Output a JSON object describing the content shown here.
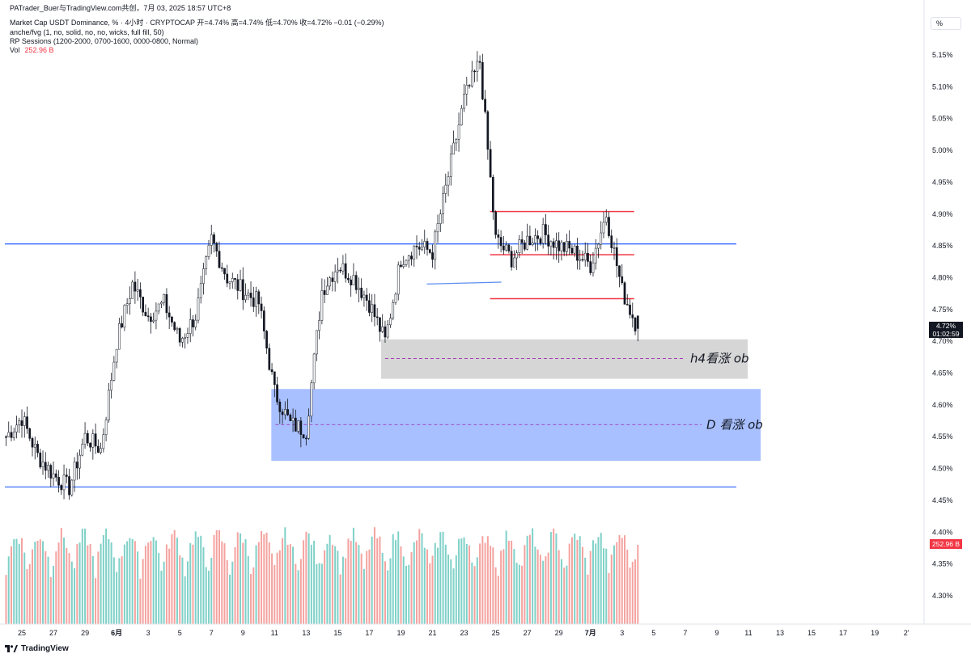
{
  "header": {
    "attribution": "PATrader_Buer与TradingView.com共创，7月 03, 2025 18:57 UTC+8",
    "symbol_line": "Market Cap USDT Dominance, % · 4小时 · CRYPTOCAP  开=4.74%  高=4.74%  低=4.70%  收=4.72%  −0.01 (−0.29%)",
    "indicator1": "anche/fvg (1, no, solid, no, no, wicks, full fill, 50)",
    "indicator2": "RP Sessions (1200-2000, 0700-1600, 0000-0800, Normal)",
    "vol_label": "Vol",
    "vol_value": "252.96 B"
  },
  "axis": {
    "unit_button": "%",
    "price_tag_value": "4.72%",
    "price_tag_countdown": "01:02:59",
    "volume_tag": "252.96 B",
    "footer_brand": "TradingView"
  },
  "colors": {
    "up": "#26a69a",
    "down": "#ef5350",
    "candle": "#131722",
    "blue_line": "#2962ff",
    "red_line": "#f23645",
    "ob_d": "#a8c0ff",
    "ob_h4": "#d6d6d6"
  },
  "chart_data": {
    "type": "candlestick",
    "symbol": "Market Cap USDT Dominance, %",
    "timeframe": "4小时",
    "ylim": [
      4.27,
      5.2
    ],
    "y_ticks": [
      "5.15%",
      "5.10%",
      "5.05%",
      "5.00%",
      "4.95%",
      "4.90%",
      "4.85%",
      "4.80%",
      "4.75%",
      "4.70%",
      "4.65%",
      "4.60%",
      "4.55%",
      "4.50%",
      "4.45%",
      "4.40%",
      "4.35%",
      "4.30%"
    ],
    "x_ticks": [
      "25",
      "27",
      "29",
      "6月",
      "3",
      "5",
      "7",
      "9",
      "11",
      "13",
      "15",
      "17",
      "19",
      "21",
      "23",
      "25",
      "27",
      "29",
      "7月",
      "3",
      "5",
      "7",
      "9",
      "11",
      "13",
      "15",
      "17",
      "19",
      "2'"
    ],
    "ohlc_anchors": [
      {
        "date": "05-24",
        "price": 4.55
      },
      {
        "date": "05-25",
        "price": 4.58
      },
      {
        "date": "05-26",
        "price": 4.52
      },
      {
        "date": "05-27",
        "price": 4.49
      },
      {
        "date": "05-28",
        "price": 4.47
      },
      {
        "date": "05-29",
        "price": 4.55
      },
      {
        "date": "05-30",
        "price": 4.53
      },
      {
        "date": "05-31",
        "price": 4.7
      },
      {
        "date": "06-01",
        "price": 4.79
      },
      {
        "date": "06-02",
        "price": 4.74
      },
      {
        "date": "06-03",
        "price": 4.76
      },
      {
        "date": "06-04",
        "price": 4.7
      },
      {
        "date": "06-05",
        "price": 4.74
      },
      {
        "date": "06-06",
        "price": 4.86
      },
      {
        "date": "06-07",
        "price": 4.8
      },
      {
        "date": "06-08",
        "price": 4.78
      },
      {
        "date": "06-09",
        "price": 4.76
      },
      {
        "date": "06-10",
        "price": 4.62
      },
      {
        "date": "06-11",
        "price": 4.57
      },
      {
        "date": "06-12",
        "price": 4.56
      },
      {
        "date": "06-13",
        "price": 4.78
      },
      {
        "date": "06-14",
        "price": 4.82
      },
      {
        "date": "06-15",
        "price": 4.8
      },
      {
        "date": "06-16",
        "price": 4.76
      },
      {
        "date": "06-17",
        "price": 4.7
      },
      {
        "date": "06-18",
        "price": 4.83
      },
      {
        "date": "06-19",
        "price": 4.85
      },
      {
        "date": "06-20",
        "price": 4.84
      },
      {
        "date": "06-21",
        "price": 4.96
      },
      {
        "date": "06-22",
        "price": 5.08
      },
      {
        "date": "06-23",
        "price": 5.14
      },
      {
        "date": "06-24",
        "price": 4.86
      },
      {
        "date": "06-25",
        "price": 4.83
      },
      {
        "date": "06-26",
        "price": 4.86
      },
      {
        "date": "06-27",
        "price": 4.87
      },
      {
        "date": "06-28",
        "price": 4.85
      },
      {
        "date": "06-29",
        "price": 4.84
      },
      {
        "date": "06-30",
        "price": 4.82
      },
      {
        "date": "07-01",
        "price": 4.9
      },
      {
        "date": "07-02",
        "price": 4.78
      },
      {
        "date": "07-03",
        "price": 4.72
      }
    ],
    "last": {
      "open": 4.74,
      "high": 4.74,
      "low": 4.7,
      "close": 4.72,
      "change": -0.01,
      "change_pct": -0.29
    },
    "levels": [
      {
        "type": "horizontal",
        "color": "blue",
        "price": 4.853
      },
      {
        "type": "horizontal",
        "color": "blue",
        "price": 4.471
      },
      {
        "type": "segment",
        "color": "red",
        "price": 4.904,
        "from": "06-24",
        "to": "07-02"
      },
      {
        "type": "segment",
        "color": "red",
        "price": 4.836,
        "from": "06-24",
        "to": "07-02"
      },
      {
        "type": "segment",
        "color": "red",
        "price": 4.767,
        "from": "06-24",
        "to": "07-02"
      },
      {
        "type": "segment",
        "color": "blue",
        "price_from": 4.79,
        "price_to": 4.793,
        "from": "06-20",
        "to": "06-24"
      }
    ],
    "zones": [
      {
        "label": "h4看涨 ob",
        "top": 4.703,
        "bottom": 4.641,
        "mid": 4.673,
        "from": "06-17"
      },
      {
        "label": "D 看涨 ob",
        "top": 4.625,
        "bottom": 4.512,
        "mid": 4.569,
        "from": "06-10"
      }
    ]
  }
}
